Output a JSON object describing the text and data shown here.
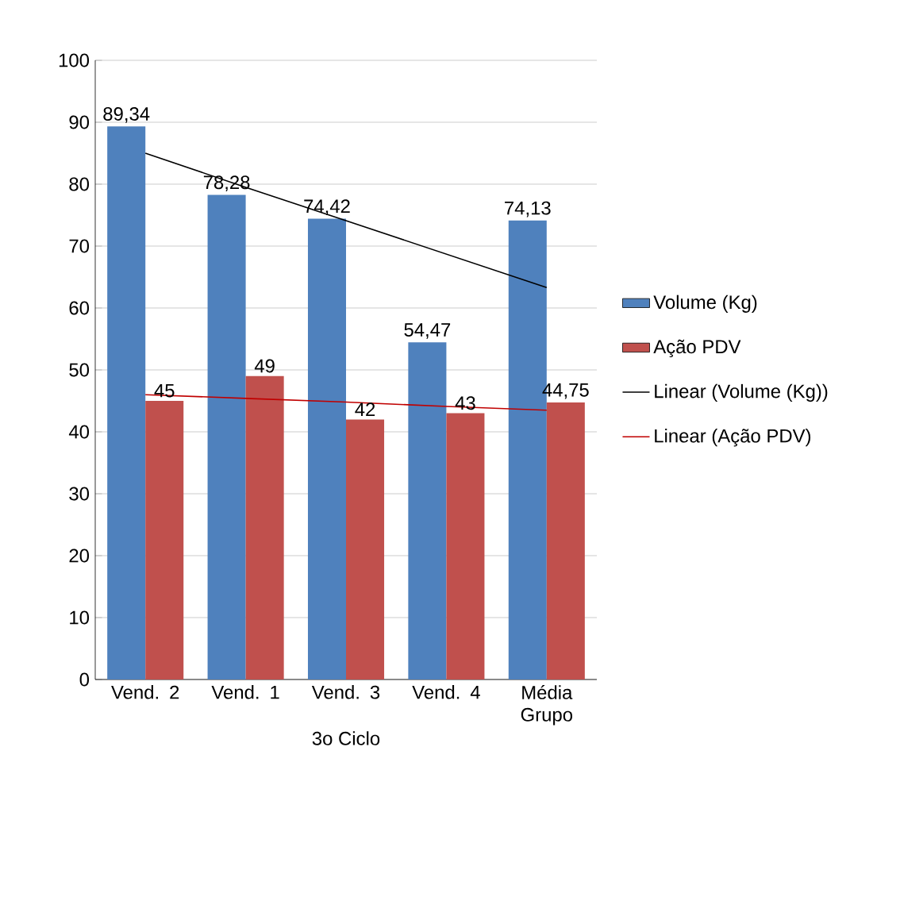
{
  "chart_data": {
    "type": "bar",
    "categories": [
      "Vend. 2",
      "Vend. 1",
      "Vend. 3",
      "Vend. 4",
      "Média Grupo"
    ],
    "series": [
      {
        "name": "Volume (Kg)",
        "color": "#4f81bd",
        "values": [
          89.34,
          78.28,
          74.42,
          54.47,
          74.13
        ],
        "value_labels": [
          "89,34",
          "78,28",
          "74,42",
          "54,47",
          "74,13"
        ]
      },
      {
        "name": "Ação PDV",
        "color": "#c0504d",
        "values": [
          45,
          49,
          42,
          43,
          44.75
        ],
        "value_labels": [
          "45",
          "49",
          "42",
          "43",
          "44,75"
        ]
      },
      {
        "name": "Linear (Volume (Kg))",
        "type": "line",
        "color": "#000000",
        "values": [
          85,
          79.5,
          74.1,
          68.7,
          63.3
        ]
      },
      {
        "name": "Linear (Ação PDV)",
        "type": "line",
        "color": "#c00000",
        "values": [
          46,
          45.4,
          44.8,
          44.1,
          43.5
        ]
      }
    ],
    "annotations": [
      "3o Ciclo"
    ],
    "ylim": [
      0,
      100
    ],
    "yticks": [
      0,
      10,
      20,
      30,
      40,
      50,
      60,
      70,
      80,
      90,
      100
    ],
    "grid": "y",
    "legend": "right"
  }
}
